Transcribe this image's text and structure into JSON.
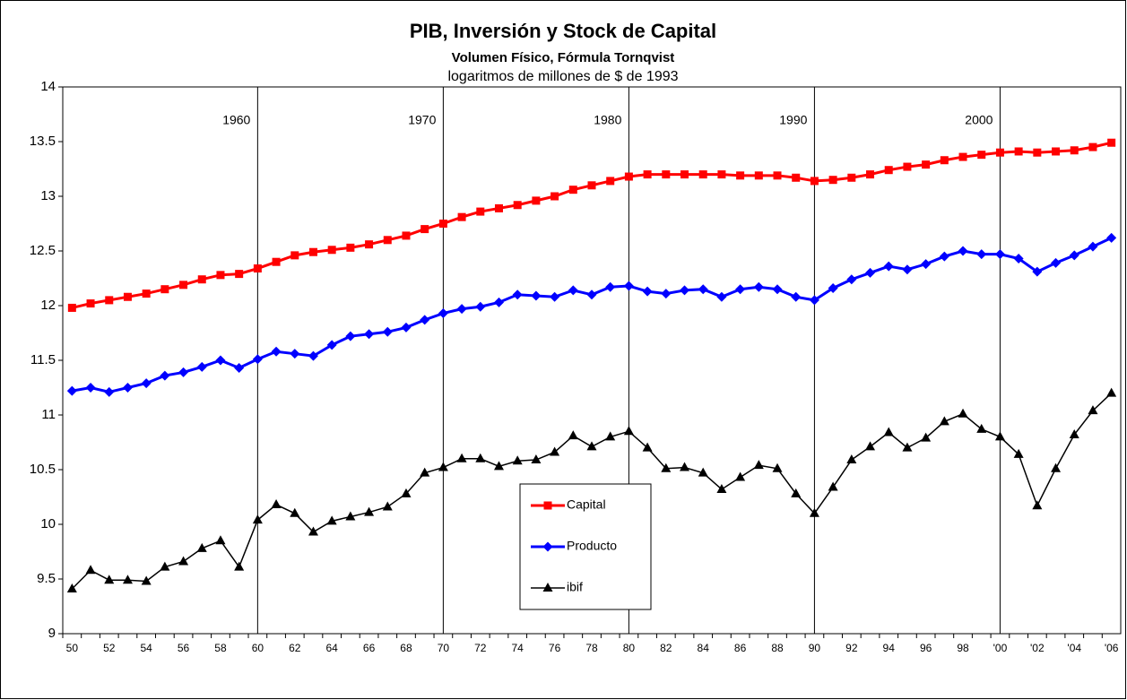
{
  "chart_data": {
    "type": "line",
    "title": "PIB, Inversión y Stock de Capital",
    "subtitle": [
      "Volumen Físico, Fórmula Tornqvist",
      "logaritmos de millones de $ de 1993"
    ],
    "categories": [
      "50",
      null,
      "52",
      null,
      "54",
      null,
      "56",
      null,
      "58",
      null,
      "60",
      null,
      "62",
      null,
      "64",
      null,
      "66",
      null,
      "68",
      null,
      "70",
      null,
      "72",
      null,
      "74",
      null,
      "76",
      null,
      "78",
      null,
      "80",
      null,
      "82",
      null,
      "84",
      null,
      "86",
      null,
      "88",
      null,
      "90",
      null,
      "92",
      null,
      "94",
      null,
      "96",
      null,
      "98",
      null,
      "'00",
      null,
      "'02",
      null,
      "'04",
      null,
      "'06"
    ],
    "ylim": [
      9,
      14
    ],
    "yticks": [
      9,
      9.5,
      10,
      10.5,
      11,
      11.5,
      12,
      12.5,
      13,
      13.5,
      14
    ],
    "grid": false,
    "legend": "lower center",
    "annotations": [
      {
        "text": "1960",
        "at": "60"
      },
      {
        "text": "1970",
        "at": "70"
      },
      {
        "text": "1980",
        "at": "80"
      },
      {
        "text": "1990",
        "at": "90"
      },
      {
        "text": "2000",
        "at": "'00"
      }
    ],
    "series": [
      {
        "name": "Capital",
        "color": "#ff0000",
        "marker": "square",
        "values": [
          11.98,
          12.02,
          12.05,
          12.08,
          12.11,
          12.15,
          12.19,
          12.24,
          12.28,
          12.29,
          12.34,
          12.4,
          12.46,
          12.49,
          12.51,
          12.53,
          12.56,
          12.6,
          12.64,
          12.7,
          12.75,
          12.81,
          12.86,
          12.89,
          12.92,
          12.96,
          13.0,
          13.06,
          13.1,
          13.14,
          13.18,
          13.2,
          13.2,
          13.2,
          13.2,
          13.2,
          13.19,
          13.19,
          13.19,
          13.17,
          13.14,
          13.15,
          13.17,
          13.2,
          13.24,
          13.27,
          13.29,
          13.33,
          13.36,
          13.38,
          13.4,
          13.41,
          13.4,
          13.41,
          13.42,
          13.45,
          13.49
        ]
      },
      {
        "name": "Producto",
        "color": "#0000ff",
        "marker": "diamond",
        "values": [
          11.22,
          11.25,
          11.21,
          11.25,
          11.29,
          11.36,
          11.39,
          11.44,
          11.5,
          11.43,
          11.51,
          11.58,
          11.56,
          11.54,
          11.64,
          11.72,
          11.74,
          11.76,
          11.8,
          11.87,
          11.93,
          11.97,
          11.99,
          12.03,
          12.1,
          12.09,
          12.08,
          12.14,
          12.1,
          12.17,
          12.18,
          12.13,
          12.11,
          12.14,
          12.15,
          12.08,
          12.15,
          12.17,
          12.15,
          12.08,
          12.05,
          12.16,
          12.24,
          12.3,
          12.36,
          12.33,
          12.38,
          12.45,
          12.5,
          12.47,
          12.47,
          12.43,
          12.31,
          12.39,
          12.46,
          12.54,
          12.62
        ]
      },
      {
        "name": "ibif",
        "color": "#000000",
        "marker": "triangle",
        "values": [
          9.41,
          9.58,
          9.49,
          9.49,
          9.48,
          9.61,
          9.66,
          9.78,
          9.85,
          9.61,
          10.04,
          10.18,
          10.1,
          9.93,
          10.03,
          10.07,
          10.11,
          10.16,
          10.28,
          10.47,
          10.52,
          10.6,
          10.6,
          10.53,
          10.58,
          10.59,
          10.66,
          10.81,
          10.71,
          10.8,
          10.85,
          10.7,
          10.51,
          10.52,
          10.47,
          10.32,
          10.43,
          10.54,
          10.51,
          10.28,
          10.1,
          10.34,
          10.59,
          10.71,
          10.84,
          10.7,
          10.79,
          10.94,
          11.01,
          10.87,
          10.8,
          10.64,
          10.17,
          10.51,
          10.82,
          11.04,
          11.2
        ]
      }
    ]
  }
}
